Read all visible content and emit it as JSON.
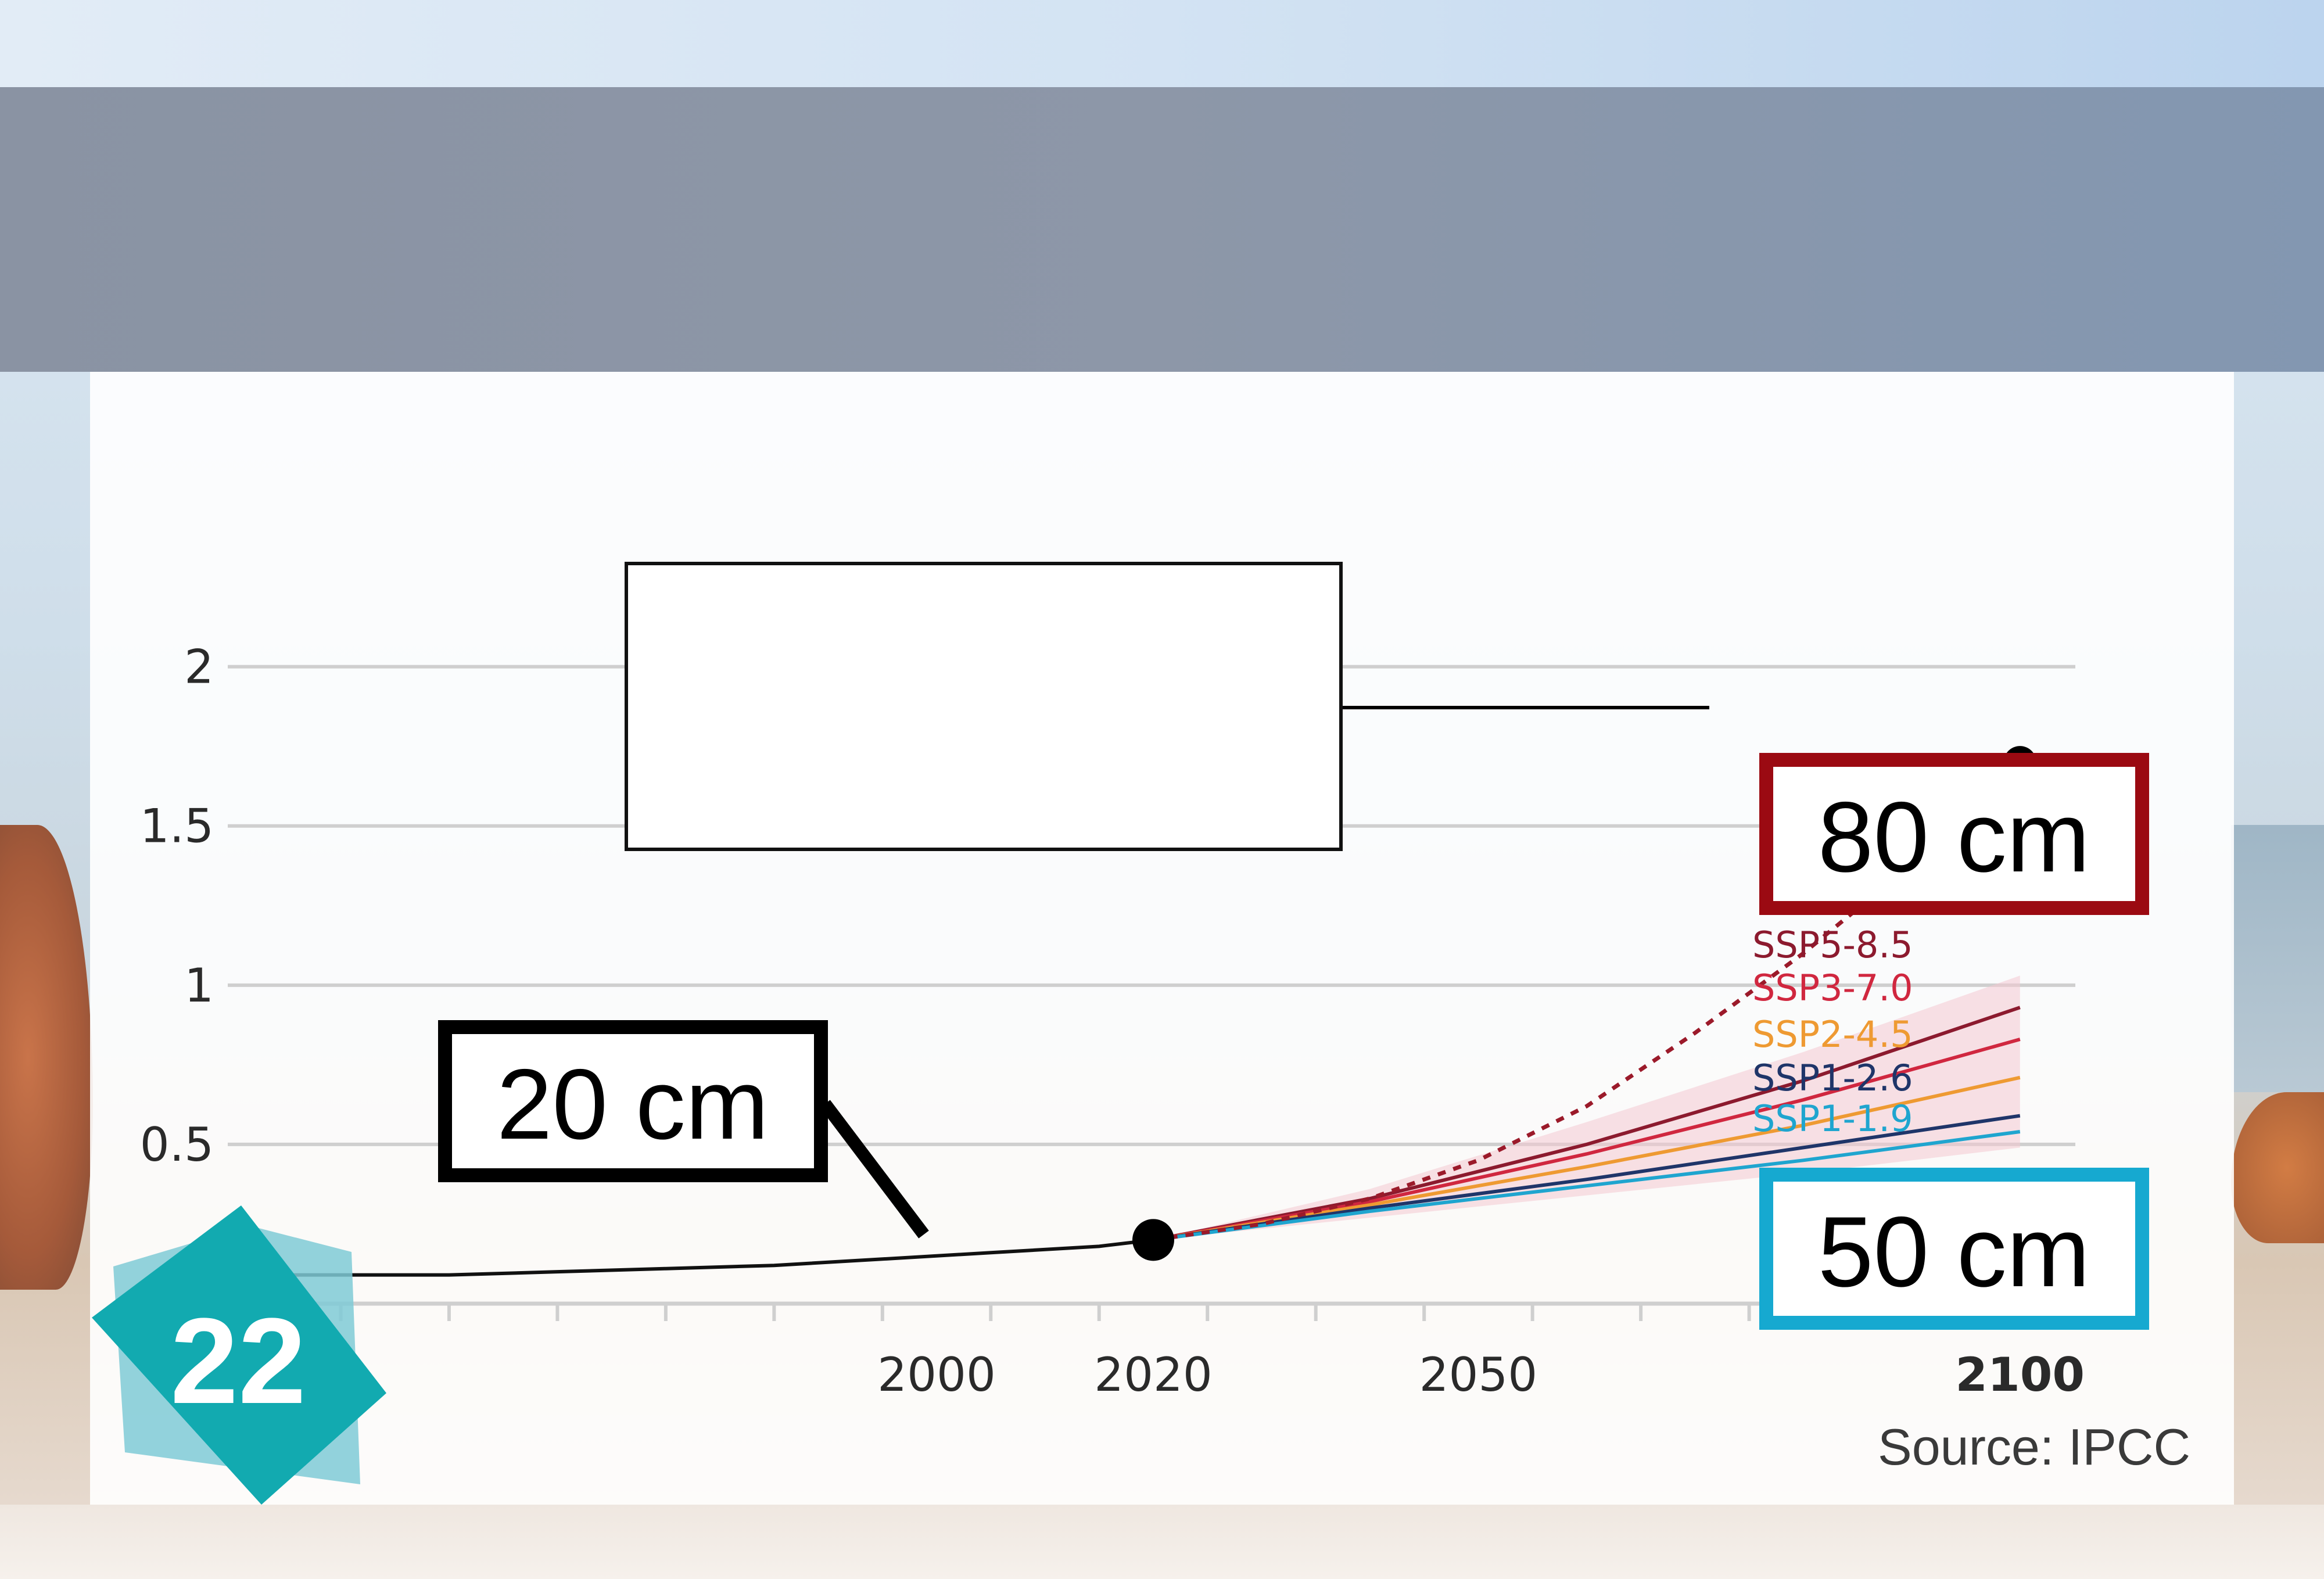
{
  "slide_number": "22",
  "source": "Source: IPCC",
  "colors": {
    "badge": "#12aab0",
    "callout_80": "#9b0a12",
    "callout_50": "#16a9d0",
    "ssp585": "#8c1a2e",
    "ssp370": "#d0273f",
    "ssp245": "#ee9a32",
    "ssp126": "#1f3569",
    "ssp119": "#1fa5cf"
  },
  "callouts": {
    "top_box": "",
    "c20": "20 cm",
    "c80": "80 cm",
    "c50": "50 cm"
  },
  "chart_data": {
    "type": "line",
    "title": "",
    "xlabel": "",
    "ylabel": "",
    "xlim": [
      1935,
      2105
    ],
    "ylim": [
      0,
      2.2
    ],
    "x_ticks": [
      1945,
      1955,
      1965,
      1975,
      1985,
      1995,
      2005,
      2015,
      2025,
      2035,
      2045,
      2055,
      2065,
      2075,
      2085,
      2095,
      2105
    ],
    "x_tick_labels": [
      {
        "x": 2000,
        "label": "2000"
      },
      {
        "x": 2020,
        "label": "2020"
      },
      {
        "x": 2050,
        "label": "2050"
      },
      {
        "x": 2100,
        "label": "2100"
      }
    ],
    "y_ticks": [
      {
        "y": 0.5,
        "label": "0.5"
      },
      {
        "y": 1,
        "label": "1"
      },
      {
        "y": 1.5,
        "label": "1.5"
      },
      {
        "y": 2,
        "label": "2"
      }
    ],
    "grid": true,
    "historical": {
      "x": [
        1935,
        1945,
        1955,
        1965,
        1975,
        1985,
        1995,
        2005,
        2015,
        2020
      ],
      "y": [
        0.09,
        0.09,
        0.09,
        0.1,
        0.11,
        0.12,
        0.14,
        0.16,
        0.18,
        0.2
      ]
    },
    "series": [
      {
        "name": "SSP5-8.5",
        "color": "#8c1a2e",
        "x": [
          2020,
          2040,
          2060,
          2080,
          2100
        ],
        "y": [
          0.2,
          0.33,
          0.5,
          0.7,
          0.93
        ]
      },
      {
        "name": "SSP3-7.0",
        "color": "#d0273f",
        "x": [
          2020,
          2040,
          2060,
          2080,
          2100
        ],
        "y": [
          0.2,
          0.32,
          0.47,
          0.64,
          0.83
        ]
      },
      {
        "name": "SSP2-4.5",
        "color": "#ee9a32",
        "x": [
          2020,
          2040,
          2060,
          2080,
          2100
        ],
        "y": [
          0.2,
          0.31,
          0.43,
          0.56,
          0.71
        ]
      },
      {
        "name": "SSP1-2.6",
        "color": "#1f3569",
        "x": [
          2020,
          2040,
          2060,
          2080,
          2100
        ],
        "y": [
          0.2,
          0.3,
          0.39,
          0.49,
          0.59
        ]
      },
      {
        "name": "SSP1-1.9",
        "color": "#1fa5cf",
        "x": [
          2020,
          2040,
          2060,
          2080,
          2100
        ],
        "y": [
          0.2,
          0.29,
          0.37,
          0.45,
          0.54
        ]
      }
    ],
    "band": {
      "x": [
        2020,
        2040,
        2060,
        2080,
        2100
      ],
      "upper": [
        0.2,
        0.36,
        0.57,
        0.79,
        1.03
      ],
      "lower": [
        0.2,
        0.27,
        0.34,
        0.41,
        0.49
      ]
    },
    "high_end": {
      "x": [
        2020,
        2030,
        2040,
        2050,
        2060,
        2070,
        2080,
        2090,
        2100
      ],
      "y": [
        0.2,
        0.25,
        0.33,
        0.45,
        0.62,
        0.85,
        1.1,
        1.38,
        1.7
      ]
    },
    "markers": [
      {
        "x": 2020,
        "y": 0.2
      },
      {
        "x": 2100,
        "y": 1.7
      }
    ]
  }
}
